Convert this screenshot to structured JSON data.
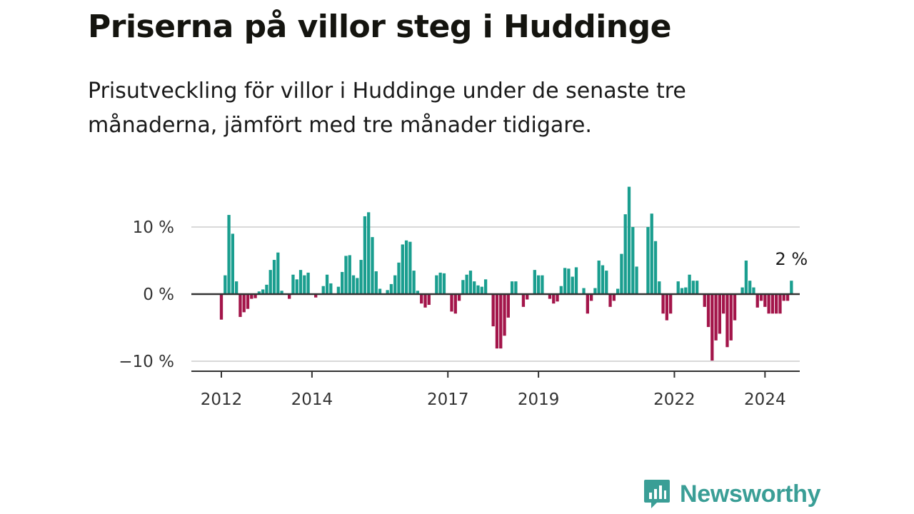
{
  "title": "Priserna på villor steg i Huddinge",
  "subtitle": "Prisutveckling för villor i Huddinge under de senaste tre månaderna, jämfört med tre månader tidigare.",
  "brand": {
    "name": "Newsworthy",
    "icon": "newsworthy-logo-icon",
    "color": "#3a9e96"
  },
  "colors": {
    "positive": "#1a9e8f",
    "negative": "#a3154a",
    "grid": "#d9d9d9",
    "axis": "#333333"
  },
  "chart_data": {
    "type": "bar",
    "unit": "%",
    "x_start": "2012-01",
    "frequency": "monthly",
    "xticks": [
      "2012",
      "2014",
      "2017",
      "2019",
      "2022",
      "2024"
    ],
    "yticks": [
      {
        "value": 10,
        "label": "10 %"
      },
      {
        "value": 0,
        "label": "0 %"
      },
      {
        "value": -10,
        "label": "−10 %"
      }
    ],
    "ylim": [
      -11.5,
      16.5
    ],
    "grid": true,
    "annotations": [
      {
        "text": "2 %",
        "target": "last"
      }
    ],
    "values": [
      -3.8,
      2.8,
      11.8,
      9.0,
      1.9,
      -3.4,
      -2.7,
      -2.2,
      -0.7,
      -0.6,
      0.4,
      0.7,
      1.4,
      3.6,
      5.1,
      6.2,
      0.5,
      0.0,
      -0.7,
      2.9,
      2.2,
      3.6,
      2.8,
      3.2,
      0.0,
      -0.5,
      0.0,
      1.2,
      2.9,
      1.6,
      0.0,
      1.1,
      3.3,
      5.7,
      5.8,
      2.8,
      2.4,
      5.1,
      11.6,
      12.2,
      8.5,
      3.4,
      0.8,
      0.0,
      0.6,
      1.5,
      2.8,
      4.7,
      7.4,
      8.0,
      7.8,
      3.5,
      0.5,
      -1.4,
      -2.0,
      -1.6,
      0.0,
      2.8,
      3.2,
      3.1,
      0.0,
      -2.6,
      -2.9,
      -1.0,
      2.1,
      2.9,
      3.5,
      1.9,
      1.3,
      1.1,
      2.2,
      0.0,
      -4.8,
      -8.1,
      -8.1,
      -6.2,
      -3.5,
      1.9,
      1.9,
      0.0,
      -1.9,
      -0.8,
      0.0,
      3.6,
      2.8,
      2.8,
      0.0,
      -0.7,
      -1.4,
      -1.1,
      1.2,
      3.9,
      3.8,
      2.6,
      4.0,
      0.0,
      0.9,
      -2.9,
      -1.0,
      0.9,
      5.0,
      4.3,
      3.5,
      -1.9,
      -1.0,
      0.8,
      6.0,
      11.9,
      16.0,
      10.0,
      4.1,
      0.0,
      0.0,
      10.0,
      12.0,
      7.9,
      1.9,
      -2.9,
      -3.9,
      -2.9,
      0.0,
      1.9,
      0.9,
      1.0,
      2.9,
      2.0,
      2.0,
      0.0,
      -1.9,
      -4.9,
      -9.9,
      -6.9,
      -5.9,
      -2.9,
      -7.9,
      -6.9,
      -3.9,
      0.0,
      1.0,
      5.0,
      2.0,
      1.0,
      -2.0,
      -1.0,
      -1.9,
      -2.9,
      -2.9,
      -2.9,
      -2.9,
      -1.0,
      -1.0,
      2.0
    ]
  }
}
